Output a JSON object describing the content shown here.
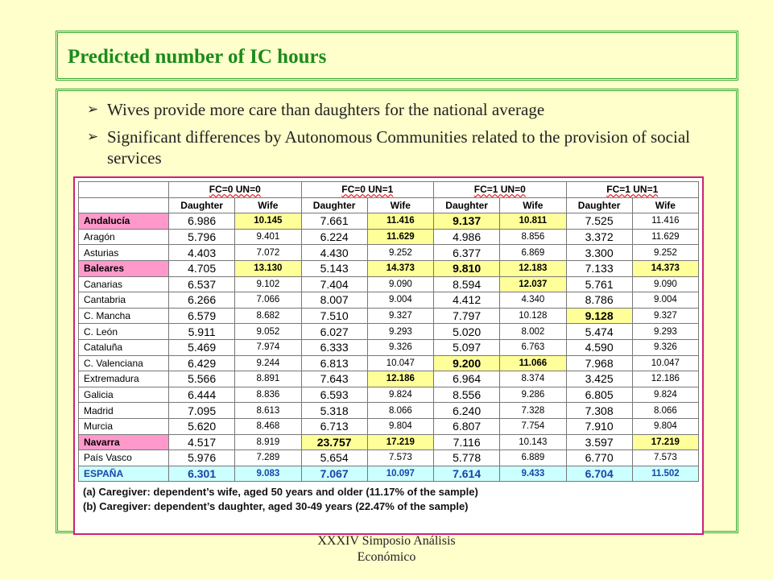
{
  "slide": {
    "title": "Predicted number of IC hours",
    "bullets": [
      "Wives provide more care than daughters for the national average",
      "Significant differences by Autonomous Communities related to the provision of social services"
    ],
    "footer_line1": "XXXIV Simposio Análisis",
    "footer_line2": "Económico"
  },
  "table": {
    "group_headers": [
      "FC=0 UN=0",
      "FC=0 UN=1",
      "FC=1 UN=0",
      "FC=1 UN=1"
    ],
    "sub_headers": [
      "Daughter",
      "Wife",
      "Daughter",
      "Wife",
      "Daughter",
      "Wife",
      "Daughter",
      "Wife"
    ],
    "colors": {
      "pink": "#ff99cc",
      "yellow": "#ffff99",
      "cyan": "#ccffff"
    },
    "rows": [
      {
        "region": "Andalucía",
        "values": [
          "6.986",
          "10.145",
          "7.661",
          "11.416",
          "9.137",
          "10.811",
          "7.525",
          "11.416"
        ],
        "region_hl": true,
        "hl": [
          1,
          3,
          4,
          5
        ]
      },
      {
        "region": "Aragón",
        "values": [
          "5.796",
          "9.401",
          "6.224",
          "11.629",
          "4.986",
          "8.856",
          "3.372",
          "11.629"
        ],
        "region_hl": false,
        "hl": [
          3
        ]
      },
      {
        "region": "Asturias",
        "values": [
          "4.403",
          "7.072",
          "4.430",
          "9.252",
          "6.377",
          "6.869",
          "3.300",
          "9.252"
        ],
        "region_hl": false,
        "hl": []
      },
      {
        "region": "Baleares",
        "values": [
          "4.705",
          "13.130",
          "5.143",
          "14.373",
          "9.810",
          "12.183",
          "7.133",
          "14.373"
        ],
        "region_hl": true,
        "hl": [
          1,
          3,
          4,
          5,
          7
        ]
      },
      {
        "region": "Canarias",
        "values": [
          "6.537",
          "9.102",
          "7.404",
          "9.090",
          "8.594",
          "12.037",
          "5.761",
          "9.090"
        ],
        "region_hl": false,
        "hl": [
          5
        ]
      },
      {
        "region": "Cantabria",
        "values": [
          "6.266",
          "7.066",
          "8.007",
          "9.004",
          "4.412",
          "4.340",
          "8.786",
          "9.004"
        ],
        "region_hl": false,
        "hl": []
      },
      {
        "region": "C. Mancha",
        "values": [
          "6.579",
          "8.682",
          "7.510",
          "9.327",
          "7.797",
          "10.128",
          "9.128",
          "9.327"
        ],
        "region_hl": false,
        "hl": [
          6
        ]
      },
      {
        "region": "C. León",
        "values": [
          "5.911",
          "9.052",
          "6.027",
          "9.293",
          "5.020",
          "8.002",
          "5.474",
          "9.293"
        ],
        "region_hl": false,
        "hl": []
      },
      {
        "region": "Cataluña",
        "values": [
          "5.469",
          "7.974",
          "6.333",
          "9.326",
          "5.097",
          "6.763",
          "4.590",
          "9.326"
        ],
        "region_hl": false,
        "hl": []
      },
      {
        "region": "C. Valenciana",
        "values": [
          "6.429",
          "9.244",
          "6.813",
          "10.047",
          "9.200",
          "11.066",
          "7.968",
          "10.047"
        ],
        "region_hl": false,
        "hl": [
          4,
          5
        ]
      },
      {
        "region": "Extremadura",
        "values": [
          "5.566",
          "8.891",
          "7.643",
          "12.186",
          "6.964",
          "8.374",
          "3.425",
          "12.186"
        ],
        "region_hl": false,
        "hl": [
          3
        ]
      },
      {
        "region": "Galicia",
        "values": [
          "6.444",
          "8.836",
          "6.593",
          "9.824",
          "8.556",
          "9.286",
          "6.805",
          "9.824"
        ],
        "region_hl": false,
        "hl": []
      },
      {
        "region": "Madrid",
        "values": [
          "7.095",
          "8.613",
          "5.318",
          "8.066",
          "6.240",
          "7.328",
          "7.308",
          "8.066"
        ],
        "region_hl": false,
        "hl": []
      },
      {
        "region": "Murcia",
        "values": [
          "5.620",
          "8.468",
          "6.713",
          "9.804",
          "6.807",
          "7.754",
          "7.910",
          "9.804"
        ],
        "region_hl": false,
        "hl": []
      },
      {
        "region": "Navarra",
        "values": [
          "4.517",
          "8.919",
          "23.757",
          "17.219",
          "7.116",
          "10.143",
          "3.597",
          "17.219"
        ],
        "region_hl": true,
        "hl": [
          2,
          3,
          7
        ]
      },
      {
        "region": "País Vasco",
        "values": [
          "5.976",
          "7.289",
          "5.654",
          "7.573",
          "5.778",
          "6.889",
          "6.770",
          "7.573"
        ],
        "region_hl": false,
        "hl": []
      }
    ],
    "total_row": {
      "region": "ESPAÑA",
      "values": [
        "6.301",
        "9.083",
        "7.067",
        "10.097",
        "7.614",
        "9.433",
        "6.704",
        "11.502"
      ]
    },
    "notes": [
      "(a) Caregiver: dependent’s wife, aged 50 years and older (11.17% of the sample)",
      "(b) Caregiver: dependent’s daughter, aged 30-49 years (22.47% of the sample)"
    ]
  }
}
